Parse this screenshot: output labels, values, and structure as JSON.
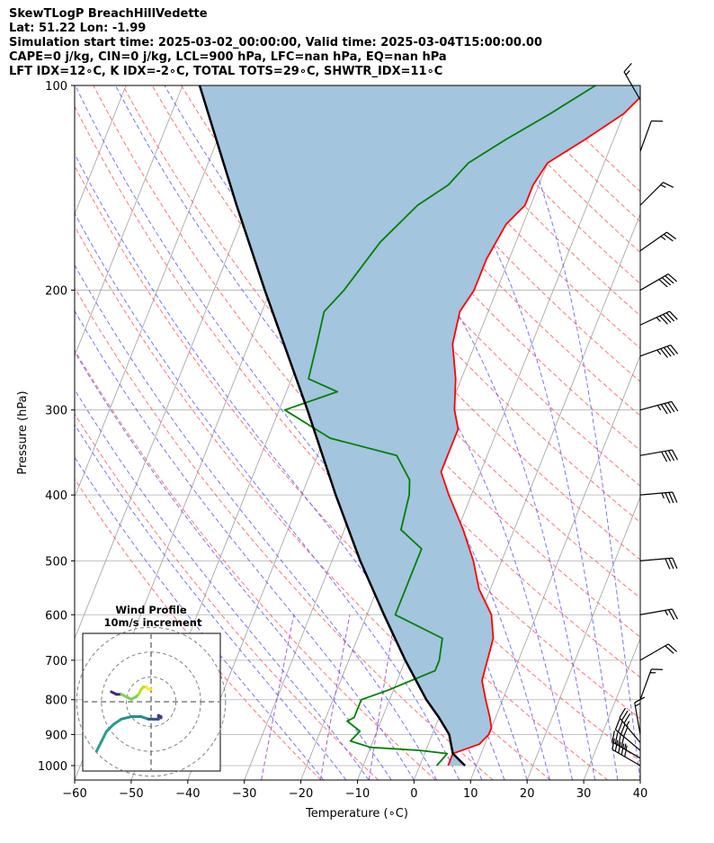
{
  "header": {
    "line1": "SkewTLogP BreachHillVedette",
    "line2": "Lat: 51.22   Lon: -1.99",
    "line3": "Simulation start time: 2025-03-02_00:00:00, Valid time: 2025-03-04T15:00:00.00",
    "line4": "CAPE=0 j/kg, CIN=0 j/kg, LCL=900 hPa, LFC=nan hPa, EQ=nan hPa",
    "line5": "LFT IDX=12∘C, K IDX=-2∘C, TOTAL TOTS=29∘C, SHWTR_IDX=11∘C"
  },
  "chart_data": {
    "type": "line",
    "subtype": "skew-T log-P diagram",
    "xlabel": "Temperature (∘C)",
    "ylabel": "Pressure (hPa)",
    "xlim": [
      -60,
      40
    ],
    "ylim": [
      1050,
      100
    ],
    "y_scale": "log",
    "grid": true,
    "x_ticks": [
      -60,
      -50,
      -40,
      -30,
      -20,
      -10,
      0,
      10,
      20,
      30,
      40
    ],
    "y_ticks": [
      100,
      200,
      300,
      400,
      500,
      600,
      700,
      800,
      900,
      1000
    ],
    "background_lines": {
      "isotherms_color": "#a0a0a0",
      "dry_adiabats_color": "#ff5c5c",
      "moist_adiabats_color": "#5c5cff",
      "mixing_ratio_color": "#9b3fd0"
    },
    "series": [
      {
        "color": "#ff0000",
        "points": [
          [
            1000,
            5
          ],
          [
            960,
            5
          ],
          [
            930,
            9
          ],
          [
            900,
            10
          ],
          [
            880,
            10
          ],
          [
            850,
            9
          ],
          [
            800,
            7
          ],
          [
            750,
            5
          ],
          [
            700,
            4.5
          ],
          [
            650,
            4
          ],
          [
            600,
            2
          ],
          [
            550,
            -2
          ],
          [
            500,
            -5
          ],
          [
            450,
            -9
          ],
          [
            400,
            -14
          ],
          [
            370,
            -17
          ],
          [
            350,
            -17
          ],
          [
            320,
            -17
          ],
          [
            300,
            -19
          ],
          [
            270,
            -21
          ],
          [
            240,
            -24
          ],
          [
            215,
            -25
          ],
          [
            200,
            -24
          ],
          [
            180,
            -24
          ],
          [
            160,
            -23
          ],
          [
            150,
            -21
          ],
          [
            140,
            -21
          ],
          [
            130,
            -20
          ],
          [
            120,
            -15
          ],
          [
            110,
            -10
          ],
          [
            100,
            -7
          ]
        ]
      },
      {
        "color": "#008000",
        "points": [
          [
            1000,
            3
          ],
          [
            960,
            4
          ],
          [
            950,
            -1
          ],
          [
            940,
            -10
          ],
          [
            920,
            -14
          ],
          [
            890,
            -13
          ],
          [
            860,
            -16
          ],
          [
            850,
            -15
          ],
          [
            800,
            -15
          ],
          [
            775,
            -11
          ],
          [
            725,
            -4
          ],
          [
            700,
            -4
          ],
          [
            650,
            -5
          ],
          [
            600,
            -15
          ],
          [
            590,
            -15
          ],
          [
            520,
            -15
          ],
          [
            480,
            -15
          ],
          [
            450,
            -20
          ],
          [
            400,
            -21
          ],
          [
            380,
            -22
          ],
          [
            350,
            -26
          ],
          [
            330,
            -39
          ],
          [
            300,
            -49
          ],
          [
            282,
            -41
          ],
          [
            270,
            -47
          ],
          [
            240,
            -48
          ],
          [
            215,
            -49
          ],
          [
            200,
            -47
          ],
          [
            170,
            -44
          ],
          [
            150,
            -40
          ],
          [
            140,
            -36
          ],
          [
            130,
            -34
          ],
          [
            120,
            -29
          ],
          [
            110,
            -23
          ],
          [
            100,
            -17
          ]
        ]
      },
      {
        "color": "#000000",
        "points": [
          [
            1000,
            8
          ],
          [
            960,
            5
          ],
          [
            900,
            3
          ],
          [
            850,
            0
          ],
          [
            800,
            -3.5
          ],
          [
            700,
            -10
          ],
          [
            600,
            -17
          ],
          [
            500,
            -25
          ],
          [
            400,
            -34
          ],
          [
            300,
            -45
          ],
          [
            200,
            -61
          ],
          [
            150,
            -72
          ],
          [
            100,
            -87
          ]
        ]
      }
    ],
    "parcel_fill_color": "#a3c5de",
    "wind_barbs": [
      {
        "p": 1000,
        "speed_kt": 50,
        "dir_deg": 300
      },
      {
        "p": 975,
        "speed_kt": 45,
        "dir_deg": 300
      },
      {
        "p": 950,
        "speed_kt": 40,
        "dir_deg": 310
      },
      {
        "p": 925,
        "speed_kt": 35,
        "dir_deg": 320
      },
      {
        "p": 900,
        "speed_kt": 15,
        "dir_deg": 350
      },
      {
        "p": 800,
        "speed_kt": 15,
        "dir_deg": 20
      },
      {
        "p": 700,
        "speed_kt": 20,
        "dir_deg": 60
      },
      {
        "p": 600,
        "speed_kt": 25,
        "dir_deg": 80
      },
      {
        "p": 500,
        "speed_kt": 30,
        "dir_deg": 85
      },
      {
        "p": 400,
        "speed_kt": 35,
        "dir_deg": 85
      },
      {
        "p": 350,
        "speed_kt": 40,
        "dir_deg": 80
      },
      {
        "p": 300,
        "speed_kt": 45,
        "dir_deg": 75
      },
      {
        "p": 250,
        "speed_kt": 45,
        "dir_deg": 70
      },
      {
        "p": 225,
        "speed_kt": 45,
        "dir_deg": 65
      },
      {
        "p": 200,
        "speed_kt": 40,
        "dir_deg": 60
      },
      {
        "p": 175,
        "speed_kt": 25,
        "dir_deg": 55
      },
      {
        "p": 150,
        "speed_kt": 15,
        "dir_deg": 45
      },
      {
        "p": 125,
        "speed_kt": 10,
        "dir_deg": 20
      },
      {
        "p": 105,
        "speed_kt": 15,
        "dir_deg": 330
      }
    ],
    "inset": {
      "title": "Wind Profile",
      "subtitle": "10m/s increment",
      "hodograph_u_v": [
        [
          -22,
          -20
        ],
        [
          -20,
          -16
        ],
        [
          -18,
          -12
        ],
        [
          -15,
          -9
        ],
        [
          -12,
          -7
        ],
        [
          -8,
          -6
        ],
        [
          -4,
          -6
        ],
        [
          -1,
          -7
        ],
        [
          1,
          -7
        ],
        [
          2,
          -7
        ],
        [
          3,
          -7
        ],
        [
          3,
          -6
        ],
        [
          3,
          -5.5
        ],
        [
          4,
          -6
        ],
        [
          4,
          -6.5
        ],
        [
          -16,
          4
        ],
        [
          -14,
          3
        ],
        [
          -12,
          3
        ],
        [
          -10,
          2
        ],
        [
          -8,
          1
        ],
        [
          -6,
          2
        ],
        [
          -5,
          3
        ],
        [
          -4,
          5
        ],
        [
          -3,
          6
        ],
        [
          -2,
          6
        ],
        [
          -1,
          5
        ],
        [
          0,
          5
        ]
      ]
    }
  }
}
